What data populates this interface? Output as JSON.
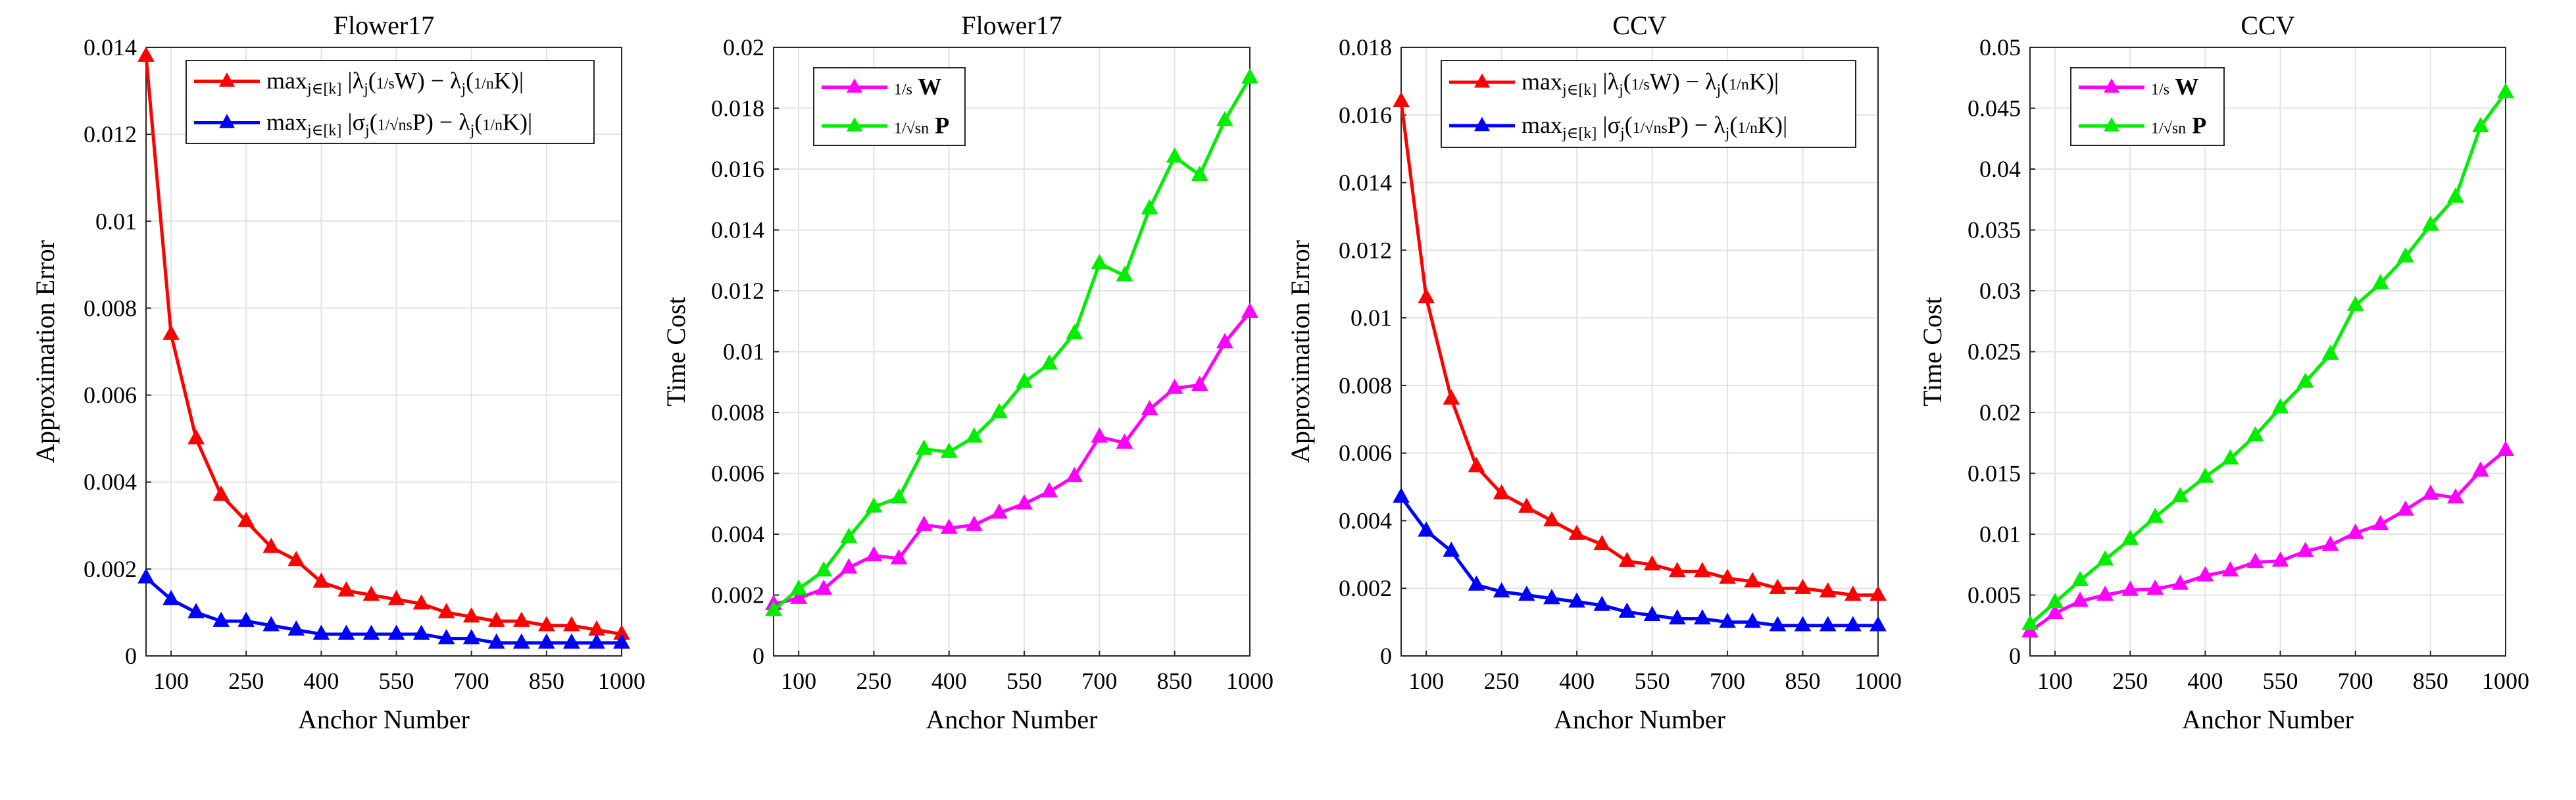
{
  "chart_data": [
    {
      "type": "line",
      "title": "Flower17",
      "xlabel": "Anchor Number",
      "ylabel": "Approximation Error",
      "xlim": [
        50,
        1000
      ],
      "ylim": [
        0,
        0.014
      ],
      "xticks": [
        100,
        250,
        400,
        550,
        700,
        850,
        1000
      ],
      "yticks": [
        0,
        0.002,
        0.004,
        0.006,
        0.008,
        0.01,
        0.012,
        0.014
      ],
      "ytick_labels": [
        "0",
        "0.002",
        "0.004",
        "0.006",
        "0.008",
        "0.01",
        "0.012",
        "0.014"
      ],
      "grid": true,
      "legend_position": "top-right",
      "x": [
        50,
        100,
        150,
        200,
        250,
        300,
        350,
        400,
        450,
        500,
        550,
        600,
        650,
        700,
        750,
        800,
        850,
        900,
        950,
        1000
      ],
      "series": [
        {
          "name": "max_{j∈[k]} |λ_j((1/s)W) − λ_j((1/n)K)|",
          "legend_parts": {
            "prefix": "max",
            "sub": "j∈[k]",
            "body": "|λ",
            "body_sub": "j",
            "mid": "(",
            "frac": "1/s",
            "rest": "W) − λ",
            "rest_sub": "j",
            "rest2": "(",
            "frac2": "1/n",
            "tail": "K)|"
          },
          "color": "#ff0000",
          "values": [
            0.0138,
            0.0074,
            0.005,
            0.0037,
            0.0031,
            0.0025,
            0.0022,
            0.0017,
            0.0015,
            0.0014,
            0.0013,
            0.0012,
            0.001,
            0.0009,
            0.0008,
            0.0008,
            0.0007,
            0.0007,
            0.0006,
            0.0005
          ]
        },
        {
          "name": "max_{j∈[k]} |σ_j((1/√ns)P) − λ_j((1/n)K)|",
          "legend_parts": {
            "prefix": "max",
            "sub": "j∈[k]",
            "body": "|σ",
            "body_sub": "j",
            "mid": "(",
            "frac": "1/√ns",
            "rest": "P) − λ",
            "rest_sub": "j",
            "rest2": "(",
            "frac2": "1/n",
            "tail": "K)|"
          },
          "color": "#0000ff",
          "values": [
            0.0018,
            0.0013,
            0.001,
            0.0008,
            0.0008,
            0.0007,
            0.0006,
            0.0005,
            0.0005,
            0.0005,
            0.0005,
            0.0005,
            0.0004,
            0.0004,
            0.0003,
            0.0003,
            0.0003,
            0.0003,
            0.0003,
            0.0003
          ]
        }
      ]
    },
    {
      "type": "line",
      "title": "Flower17",
      "xlabel": "Anchor Number",
      "ylabel": "Time Cost",
      "xlim": [
        50,
        1000
      ],
      "ylim": [
        0,
        0.02
      ],
      "xticks": [
        100,
        250,
        400,
        550,
        700,
        850,
        1000
      ],
      "yticks": [
        0,
        0.002,
        0.004,
        0.006,
        0.008,
        0.01,
        0.012,
        0.014,
        0.016,
        0.018,
        0.02
      ],
      "ytick_labels": [
        "0",
        "0.002",
        "0.004",
        "0.006",
        "0.008",
        "0.01",
        "0.012",
        "0.014",
        "0.016",
        "0.018",
        "0.02"
      ],
      "grid": true,
      "legend_position": "top-left",
      "x": [
        50,
        100,
        150,
        200,
        250,
        300,
        350,
        400,
        450,
        500,
        550,
        600,
        650,
        700,
        750,
        800,
        850,
        900,
        950,
        1000
      ],
      "series": [
        {
          "name": "(1/s)W",
          "legend_parts": {
            "frac": "1/s",
            "tail": "W"
          },
          "color": "#ff00ff",
          "values": [
            0.0017,
            0.0019,
            0.0022,
            0.0029,
            0.0033,
            0.0032,
            0.0043,
            0.0042,
            0.0043,
            0.0047,
            0.005,
            0.0054,
            0.0059,
            0.0072,
            0.007,
            0.0081,
            0.0088,
            0.0089,
            0.0103,
            0.0113
          ]
        },
        {
          "name": "(1/√sn)P",
          "legend_parts": {
            "frac": "1/√sn",
            "tail": "P"
          },
          "color": "#00ee00",
          "values": [
            0.0015,
            0.0022,
            0.0028,
            0.0039,
            0.0049,
            0.0052,
            0.0068,
            0.0067,
            0.0072,
            0.008,
            0.009,
            0.0096,
            0.0106,
            0.0129,
            0.0125,
            0.0147,
            0.0164,
            0.0158,
            0.0176,
            0.019
          ]
        }
      ]
    },
    {
      "type": "line",
      "title": "CCV",
      "xlabel": "Anchor Number",
      "ylabel": "Approximation Error",
      "xlim": [
        50,
        1000
      ],
      "ylim": [
        0,
        0.018
      ],
      "xticks": [
        100,
        250,
        400,
        550,
        700,
        850,
        1000
      ],
      "yticks": [
        0,
        0.002,
        0.004,
        0.006,
        0.008,
        0.01,
        0.012,
        0.014,
        0.016,
        0.018
      ],
      "ytick_labels": [
        "0",
        "0.002",
        "0.004",
        "0.006",
        "0.008",
        "0.01",
        "0.012",
        "0.014",
        "0.016",
        "0.018"
      ],
      "grid": true,
      "legend_position": "top-right",
      "x": [
        50,
        100,
        150,
        200,
        250,
        300,
        350,
        400,
        450,
        500,
        550,
        600,
        650,
        700,
        750,
        800,
        850,
        900,
        950,
        1000
      ],
      "series": [
        {
          "name": "max_{j∈[k]} |λ_j((1/s)W) − λ_j((1/n)K)|",
          "legend_parts": {
            "prefix": "max",
            "sub": "j∈[k]",
            "body": "|λ",
            "body_sub": "j",
            "mid": "(",
            "frac": "1/s",
            "rest": "W) − λ",
            "rest_sub": "j",
            "rest2": "(",
            "frac2": "1/n",
            "tail": "K)|"
          },
          "color": "#ff0000",
          "values": [
            0.0164,
            0.0106,
            0.0076,
            0.0056,
            0.0048,
            0.0044,
            0.004,
            0.0036,
            0.0033,
            0.0028,
            0.0027,
            0.0025,
            0.0025,
            0.0023,
            0.0022,
            0.002,
            0.002,
            0.0019,
            0.0018,
            0.0018
          ]
        },
        {
          "name": "max_{j∈[k]} |σ_j((1/√ns)P) − λ_j((1/n)K)|",
          "legend_parts": {
            "prefix": "max",
            "sub": "j∈[k]",
            "body": "|σ",
            "body_sub": "j",
            "mid": "(",
            "frac": "1/√ns",
            "rest": "P) − λ",
            "rest_sub": "j",
            "rest2": "(",
            "frac2": "1/n",
            "tail": "K)|"
          },
          "color": "#0000ff",
          "values": [
            0.0047,
            0.0037,
            0.0031,
            0.0021,
            0.0019,
            0.0018,
            0.0017,
            0.0016,
            0.0015,
            0.0013,
            0.0012,
            0.0011,
            0.0011,
            0.001,
            0.001,
            0.0009,
            0.0009,
            0.0009,
            0.0009,
            0.0009
          ]
        }
      ]
    },
    {
      "type": "line",
      "title": "CCV",
      "xlabel": "Anchor Number",
      "ylabel": "Time Cost",
      "xlim": [
        50,
        1000
      ],
      "ylim": [
        0,
        0.05
      ],
      "xticks": [
        100,
        250,
        400,
        550,
        700,
        850,
        1000
      ],
      "yticks": [
        0,
        0.005,
        0.01,
        0.015,
        0.02,
        0.025,
        0.03,
        0.035,
        0.04,
        0.045,
        0.05
      ],
      "ytick_labels": [
        "0",
        "0.005",
        "0.01",
        "0.015",
        "0.02",
        "0.025",
        "0.03",
        "0.035",
        "0.04",
        "0.045",
        "0.05"
      ],
      "grid": true,
      "legend_position": "top-left",
      "x": [
        50,
        100,
        150,
        200,
        250,
        300,
        350,
        400,
        450,
        500,
        550,
        600,
        650,
        700,
        750,
        800,
        850,
        900,
        950,
        1000
      ],
      "series": [
        {
          "name": "(1/s)W",
          "legend_parts": {
            "frac": "1/s",
            "tail": "W"
          },
          "color": "#ff00ff",
          "values": [
            0.002,
            0.0035,
            0.0045,
            0.005,
            0.0054,
            0.0055,
            0.0059,
            0.0066,
            0.007,
            0.0077,
            0.0078,
            0.0086,
            0.0091,
            0.0101,
            0.0108,
            0.012,
            0.0133,
            0.013,
            0.0152,
            0.0169
          ]
        },
        {
          "name": "(1/√sn)P",
          "legend_parts": {
            "frac": "1/√sn",
            "tail": "P"
          },
          "color": "#00ee00",
          "values": [
            0.0026,
            0.0044,
            0.0062,
            0.0079,
            0.0096,
            0.0114,
            0.0131,
            0.0147,
            0.0162,
            0.0181,
            0.0204,
            0.0225,
            0.0248,
            0.0288,
            0.0306,
            0.0328,
            0.0354,
            0.0377,
            0.0435,
            0.0463
          ]
        }
      ]
    }
  ]
}
